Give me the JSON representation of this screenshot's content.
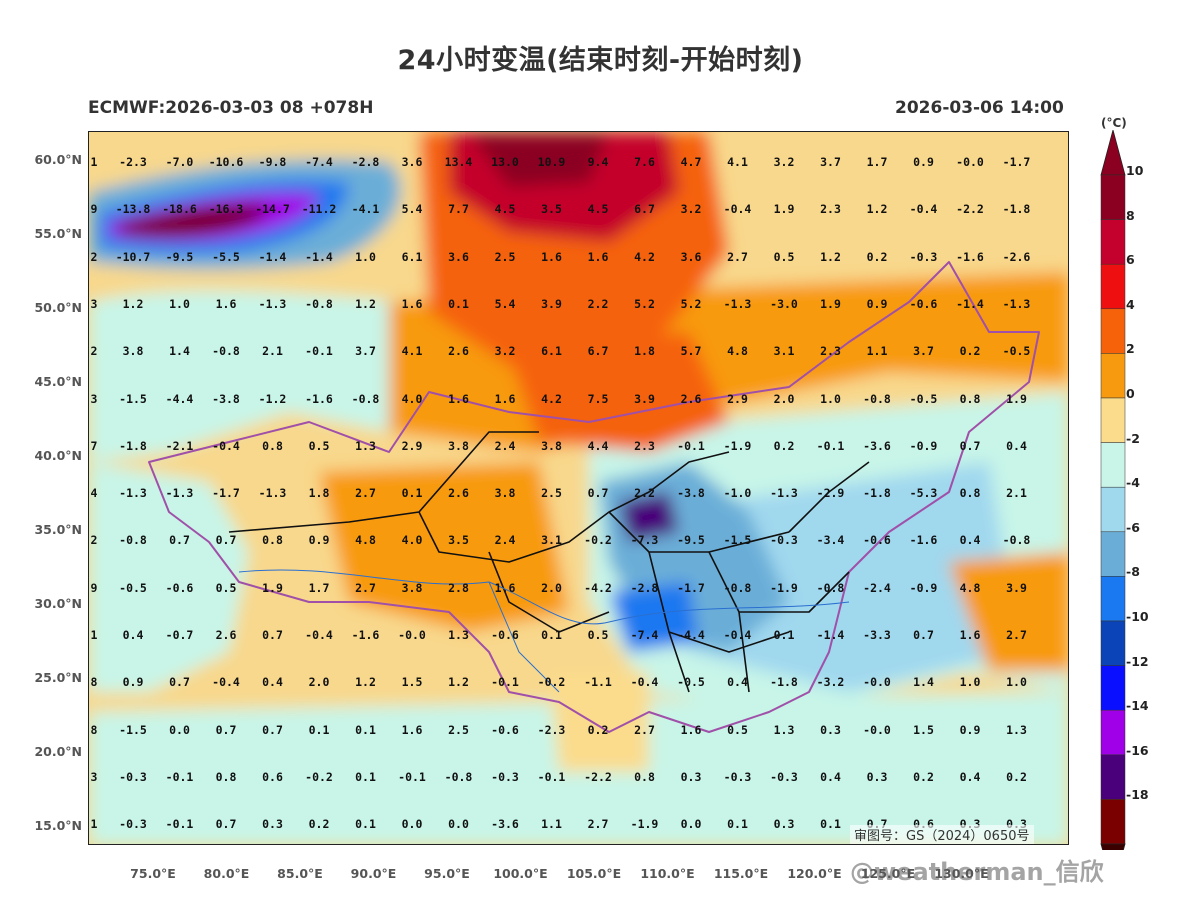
{
  "title": "24小时变温(结束时刻-开始时刻)",
  "model_run": "ECMWF:2026-03-03 08 +078H",
  "valid_time": "2026-03-06 14:00",
  "colorbar": {
    "unit": "(°C)",
    "ticks": [
      "10",
      "8",
      "6",
      "4",
      "2",
      "0",
      "-2",
      "-4",
      "-6",
      "-8",
      "-10",
      "-12",
      "-14",
      "-16",
      "-18"
    ],
    "colors": [
      "#8b0020",
      "#c4002c",
      "#ee1010",
      "#f5620a",
      "#f89a10",
      "#fbdc8c",
      "#c8f5e8",
      "#a0d8ee",
      "#6aaed8",
      "#1a78f0",
      "#0a44b8",
      "#0a10ff",
      "#a000e8",
      "#4a007a",
      "#7a0000"
    ]
  },
  "map": {
    "lat_labels": [
      "60.0°N",
      "55.0°N",
      "50.0°N",
      "45.0°N",
      "40.0°N",
      "35.0°N",
      "30.0°N",
      "25.0°N",
      "20.0°N",
      "15.0°N"
    ],
    "lon_labels": [
      "75.0°E",
      "80.0°E",
      "85.0°E",
      "90.0°E",
      "95.0°E",
      "100.0°E",
      "105.0°E",
      "110.0°E",
      "115.0°E",
      "120.0°E",
      "125.0°E",
      "130.0°E"
    ],
    "value_rows": [
      [
        "1",
        "-2.3",
        "-7.0",
        "-10.6",
        "-9.8",
        "-7.4",
        "-2.8",
        "3.6",
        "13.4",
        "13.0",
        "10.9",
        "9.4",
        "7.6",
        "4.7",
        "4.1",
        "3.2",
        "3.7",
        "1.7",
        "0.9",
        "-0.0",
        "-1.7"
      ],
      [
        "9",
        "-13.8",
        "-18.6",
        "-16.3",
        "-14.7",
        "-11.2",
        "-4.1",
        "5.4",
        "7.7",
        "4.5",
        "3.5",
        "4.5",
        "6.7",
        "3.2",
        "-0.4",
        "1.9",
        "2.3",
        "1.2",
        "-0.4",
        "-2.2",
        "-1.8"
      ],
      [
        "2",
        "-10.7",
        "-9.5",
        "-5.5",
        "-1.4",
        "-1.4",
        "1.0",
        "6.1",
        "3.6",
        "2.5",
        "1.6",
        "1.6",
        "4.2",
        "3.6",
        "2.7",
        "0.5",
        "1.2",
        "0.2",
        "-0.3",
        "-1.6",
        "-2.6"
      ],
      [
        "3",
        "1.2",
        "1.0",
        "1.6",
        "-1.3",
        "-0.8",
        "1.2",
        "1.6",
        "0.1",
        "5.4",
        "3.9",
        "2.2",
        "5.2",
        "5.2",
        "-1.3",
        "-3.0",
        "1.9",
        "0.9",
        "-0.6",
        "-1.4",
        "-1.3"
      ],
      [
        "2",
        "3.8",
        "1.4",
        "-0.8",
        "2.1",
        "-0.1",
        "3.7",
        "4.1",
        "2.6",
        "3.2",
        "6.1",
        "6.7",
        "1.8",
        "5.7",
        "4.8",
        "3.1",
        "2.3",
        "1.1",
        "3.7",
        "0.2",
        "-0.5"
      ],
      [
        "3",
        "-1.5",
        "-4.4",
        "-3.8",
        "-1.2",
        "-1.6",
        "-0.8",
        "4.0",
        "1.6",
        "1.6",
        "4.2",
        "7.5",
        "3.9",
        "2.6",
        "2.9",
        "2.0",
        "1.0",
        "-0.8",
        "-0.5",
        "0.8",
        "1.9"
      ],
      [
        "7",
        "-1.8",
        "-2.1",
        "-0.4",
        "0.8",
        "0.5",
        "1.3",
        "2.9",
        "3.8",
        "2.4",
        "3.8",
        "4.4",
        "2.3",
        "-0.1",
        "-1.9",
        "0.2",
        "-0.1",
        "-3.6",
        "-0.9",
        "0.7",
        "0.4"
      ],
      [
        "4",
        "-1.3",
        "-1.3",
        "-1.7",
        "-1.3",
        "1.8",
        "2.7",
        "0.1",
        "2.6",
        "3.8",
        "2.5",
        "0.7",
        "2.2",
        "-3.8",
        "-1.0",
        "-1.3",
        "-2.9",
        "-1.8",
        "-5.3",
        "0.8",
        "2.1"
      ],
      [
        "2",
        "-0.8",
        "0.7",
        "0.7",
        "0.8",
        "0.9",
        "4.8",
        "4.0",
        "3.5",
        "2.4",
        "3.1",
        "-0.2",
        "-7.3",
        "-9.5",
        "-1.5",
        "-0.3",
        "-3.4",
        "-0.6",
        "-1.6",
        "0.4",
        "-0.8"
      ],
      [
        "9",
        "-0.5",
        "-0.6",
        "0.5",
        "1.9",
        "1.7",
        "2.7",
        "3.8",
        "2.8",
        "1.6",
        "2.0",
        "-4.2",
        "-2.8",
        "-1.7",
        "-0.8",
        "-1.9",
        "-0.8",
        "-2.4",
        "-0.9",
        "4.8",
        "3.9"
      ],
      [
        "1",
        "0.4",
        "-0.7",
        "2.6",
        "0.7",
        "-0.4",
        "-1.6",
        "-0.0",
        "1.3",
        "-0.6",
        "0.1",
        "0.5",
        "-7.4",
        "-4.4",
        "-0.4",
        "0.1",
        "-1.4",
        "-3.3",
        "0.7",
        "1.6",
        "2.7"
      ],
      [
        "8",
        "0.9",
        "0.7",
        "-0.4",
        "0.4",
        "2.0",
        "1.2",
        "1.5",
        "1.2",
        "-0.1",
        "-0.2",
        "-1.1",
        "-0.4",
        "-0.5",
        "0.4",
        "-1.8",
        "-3.2",
        "-0.0",
        "1.4",
        "1.0",
        "1.0"
      ],
      [
        "8",
        "-1.5",
        "0.0",
        "0.7",
        "0.7",
        "0.1",
        "0.1",
        "1.6",
        "2.5",
        "-0.6",
        "-2.3",
        "0.2",
        "2.7",
        "1.6",
        "0.5",
        "1.3",
        "0.3",
        "-0.0",
        "1.5",
        "0.9",
        "1.3"
      ],
      [
        "3",
        "-0.3",
        "-0.1",
        "0.8",
        "0.6",
        "-0.2",
        "0.1",
        "-0.1",
        "-0.8",
        "-0.3",
        "-0.1",
        "-2.2",
        "0.8",
        "0.3",
        "-0.3",
        "-0.3",
        "0.4",
        "0.3",
        "0.2",
        "0.4",
        "0.2"
      ],
      [
        "1",
        "-0.3",
        "-0.1",
        "0.7",
        "0.3",
        "0.2",
        "0.1",
        "0.0",
        "0.0",
        "-3.6",
        "1.1",
        "2.7",
        "-1.9",
        "0.0",
        "0.1",
        "0.3",
        "0.1",
        "0.7",
        "0.6",
        "0.3",
        "0.3"
      ]
    ]
  },
  "review_number": "审图号：GS（2024）0650号",
  "watermark": "@weatherman_信欣"
}
